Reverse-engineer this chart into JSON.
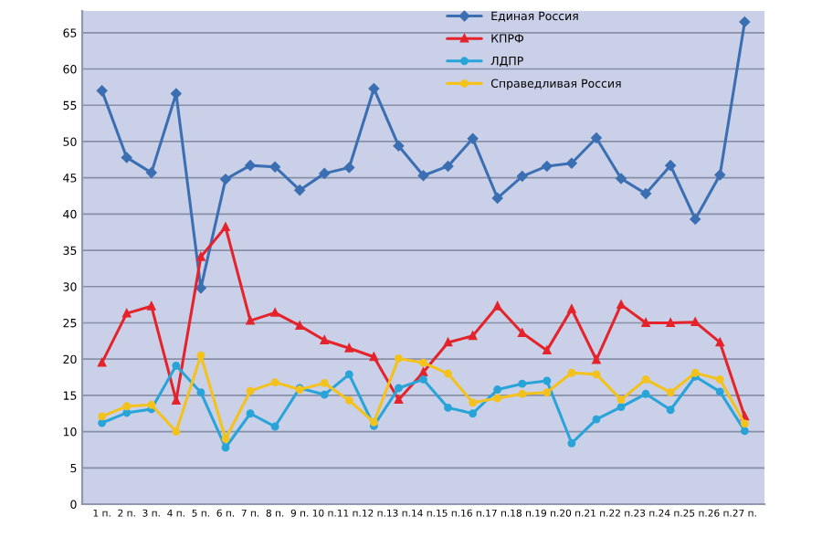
{
  "chart_data": {
    "type": "line",
    "categories": [
      "1 п.",
      "2 п.",
      "3 п.",
      "4 п.",
      "5 п.",
      "6 п.",
      "7 п.",
      "8 п.",
      "9 п.",
      "10 п.",
      "11 п.",
      "12 п.",
      "13 п.",
      "14 п.",
      "15 п.",
      "16 п.",
      "17 п.",
      "18 п.",
      "19 п.",
      "20 п.",
      "21 п.",
      "22 п.",
      "23 п.",
      "24 п.",
      "25 п.",
      "26 п.",
      "27 п."
    ],
    "series": [
      {
        "name": "Единая Россия",
        "color": "#3b6fb2",
        "marker": "diamond",
        "values": [
          57.0,
          47.8,
          45.7,
          56.6,
          29.8,
          44.8,
          46.7,
          46.5,
          43.3,
          45.6,
          46.4,
          57.3,
          49.4,
          45.3,
          46.6,
          50.4,
          42.2,
          45.2,
          46.6,
          47.0,
          50.5,
          44.9,
          42.8,
          46.7,
          39.3,
          45.4,
          66.5
        ]
      },
      {
        "name": "КПРФ",
        "color": "#e4232b",
        "marker": "triangle",
        "values": [
          19.5,
          26.3,
          27.3,
          14.3,
          34.1,
          38.2,
          25.3,
          26.4,
          24.6,
          22.6,
          21.5,
          20.3,
          14.4,
          18.2,
          22.3,
          23.2,
          27.3,
          23.6,
          21.2,
          26.9,
          19.9,
          27.5,
          25.0,
          25.0,
          25.1,
          22.3,
          12.1
        ]
      },
      {
        "name": "ЛДПР",
        "color": "#29a4d8",
        "marker": "circle",
        "values": [
          11.2,
          12.6,
          13.1,
          19.1,
          15.4,
          7.8,
          12.5,
          10.7,
          16.0,
          15.1,
          17.9,
          10.8,
          16.0,
          17.2,
          13.3,
          12.5,
          15.8,
          16.6,
          17.0,
          8.4,
          11.7,
          13.4,
          15.2,
          13.0,
          17.6,
          15.5,
          10.1
        ]
      },
      {
        "name": "Справедливая Россия",
        "color": "#f4c21c",
        "marker": "circle",
        "values": [
          12.1,
          13.5,
          13.7,
          10.0,
          20.5,
          9.0,
          15.6,
          16.8,
          15.8,
          16.7,
          14.3,
          11.3,
          20.1,
          19.5,
          18.0,
          14.0,
          14.6,
          15.2,
          15.4,
          18.1,
          17.9,
          14.4,
          17.2,
          15.4,
          18.1,
          17.2,
          11.1
        ]
      }
    ],
    "ylim": [
      0,
      68
    ],
    "yticks": [
      0,
      5,
      10,
      15,
      20,
      25,
      30,
      35,
      40,
      45,
      50,
      55,
      60,
      65
    ],
    "grid": "y",
    "legend": "top right",
    "line_style": "solid"
  }
}
